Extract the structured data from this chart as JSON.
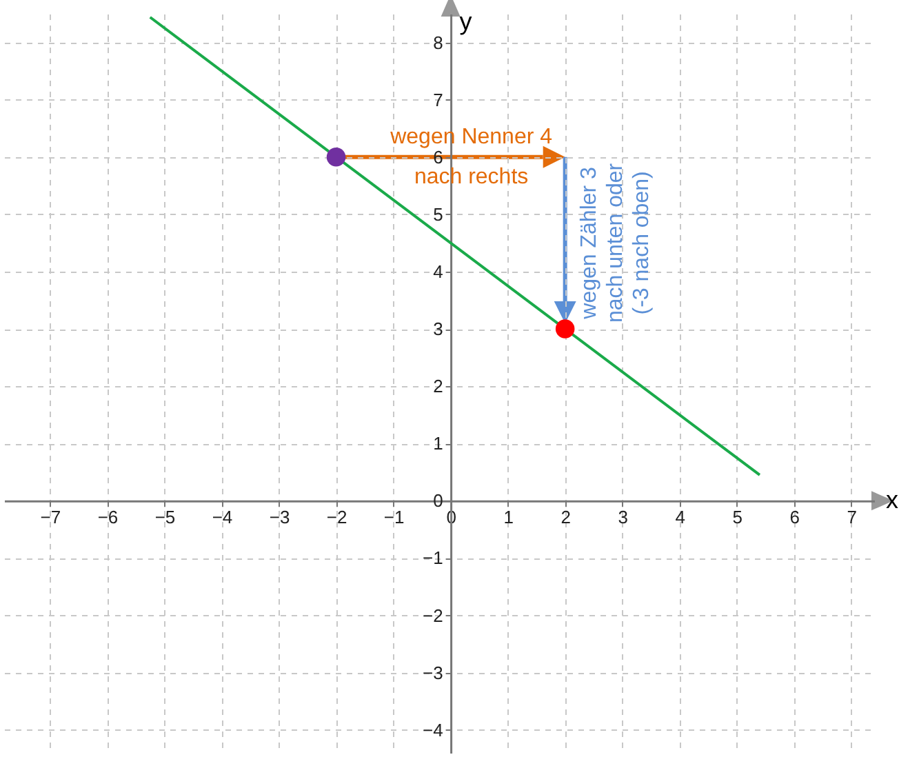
{
  "chart_data": {
    "type": "line",
    "xlabel": "x",
    "ylabel": "y",
    "xlim": [
      -7.8,
      7.4
    ],
    "ylim": [
      -4.4,
      8.5
    ],
    "xticks": [
      -7,
      -6,
      -5,
      -4,
      -3,
      -2,
      -1,
      0,
      1,
      2,
      3,
      4,
      5,
      6,
      7
    ],
    "yticks": [
      -4,
      -3,
      -2,
      -1,
      0,
      1,
      2,
      3,
      4,
      5,
      6,
      7,
      8
    ],
    "grid": true,
    "line_style": "solid",
    "series": [
      {
        "color": "#1aaa4a",
        "x": [
          -5.25,
          5.4
        ],
        "values": [
          8.44,
          0.45
        ]
      },
      {
        "type": "scatter",
        "color": "#7030a0",
        "x": [
          -2
        ],
        "values": [
          6
        ]
      },
      {
        "type": "scatter",
        "color": "#ff0000",
        "x": [
          2
        ],
        "values": [
          3
        ]
      }
    ],
    "annotations": [
      {
        "text": "wegen Nenner 4\nnach rechts",
        "x": -2,
        "y": 6
      },
      "wegen Zähler 3\nnach unten oder\n(-3 nach oben)"
    ]
  }
}
